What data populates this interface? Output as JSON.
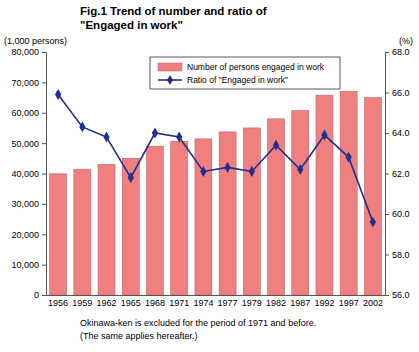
{
  "chart_data": {
    "type": "bar",
    "title": [
      "Fig.1  Trend of number and ratio of",
      "\"Engaged in work\""
    ],
    "y_label": "(1,000 persons)",
    "y2_label": "(%)",
    "annotations": [
      "Okinawa-ken is excluded for the period of 1971 and before.",
      "(The same applies hereafter.)"
    ],
    "categories": [
      "1956",
      "1959",
      "1962",
      "1965",
      "1968",
      "1971",
      "1974",
      "1977",
      "1979",
      "1982",
      "1987",
      "1992",
      "1997",
      "2002"
    ],
    "series": [
      {
        "name": "Number of persons engaged in work",
        "type": "bar",
        "color": "#f08080",
        "values": [
          39900,
          41400,
          43000,
          45000,
          49000,
          50600,
          51400,
          53700,
          55000,
          58000,
          60700,
          65800,
          67000,
          65000
        ]
      },
      {
        "name": "Ratio of \"Engaged in work\"",
        "type": "line",
        "color": "#1f2f8f",
        "marker": "diamond",
        "axis": "y2",
        "values": [
          65.9,
          64.3,
          63.8,
          61.8,
          64.0,
          63.8,
          62.1,
          62.3,
          62.1,
          63.4,
          62.2,
          63.9,
          62.8,
          59.6
        ]
      }
    ],
    "ylim": [
      0,
      80000
    ],
    "yticks": [
      0,
      {
        "value": 10000,
        "label": "10,000"
      },
      {
        "value": 20000,
        "label": "20,000"
      },
      {
        "value": 30000,
        "label": "30,000"
      },
      {
        "value": 40000,
        "label": "40,000"
      },
      {
        "value": 50000,
        "label": "50,000"
      },
      {
        "value": 60000,
        "label": "60,000"
      },
      {
        "value": 70000,
        "label": "70,000"
      },
      {
        "value": 80000,
        "label": "80,000"
      }
    ],
    "y2lim": [
      56,
      68
    ],
    "y2ticks": [
      {
        "value": 56,
        "label": "56.0"
      },
      {
        "value": 58,
        "label": "58.0"
      },
      {
        "value": 60,
        "label": "60.0"
      },
      {
        "value": 62,
        "label": "62.0"
      },
      {
        "value": 64,
        "label": "64.0"
      },
      {
        "value": 66,
        "label": "66.0"
      },
      {
        "value": 68,
        "label": "68.0"
      }
    ],
    "grid": false,
    "legend": "top"
  }
}
